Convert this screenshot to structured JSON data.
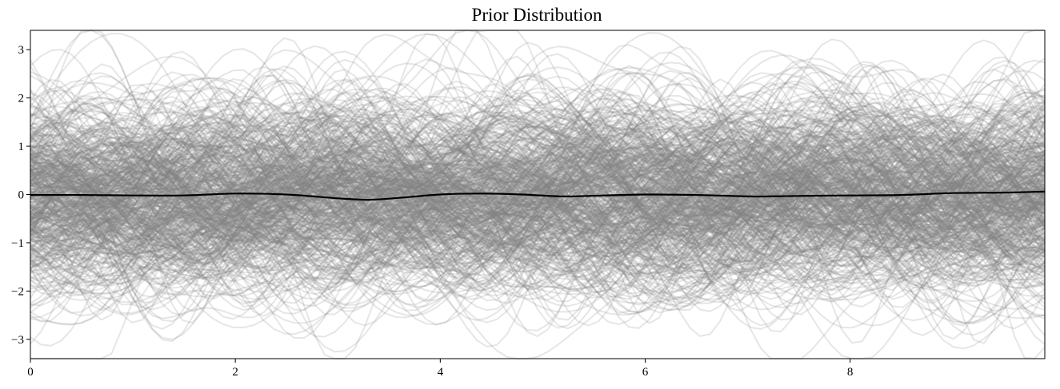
{
  "chart_data": {
    "type": "line",
    "title": "Prior Distribution",
    "xlabel": "",
    "ylabel": "",
    "xlim": [
      0,
      9.9
    ],
    "ylim": [
      -3.4,
      3.4
    ],
    "xticks": [
      0,
      2,
      4,
      6,
      8
    ],
    "xtick_labels": [
      "0",
      "2",
      "4",
      "6",
      "8"
    ],
    "yticks": [
      -3,
      -2,
      -1,
      0,
      1,
      2,
      3
    ],
    "ytick_labels": [
      "−3",
      "−2",
      "−1",
      "0",
      "1",
      "2",
      "3"
    ],
    "grid": false,
    "legend": "none",
    "colors": {
      "samples": "#808080",
      "mean": "#000000"
    },
    "sample_opacity": 0.2,
    "samples": {
      "count": 500,
      "kernel": "RBF",
      "length_scale": 0.5,
      "variance": 1.0
    },
    "series": [
      {
        "role": "mean",
        "x": [
          0,
          0.5,
          1.0,
          1.5,
          2.0,
          2.5,
          3.0,
          3.3,
          3.6,
          4.0,
          4.4,
          4.8,
          5.2,
          5.6,
          6.0,
          6.5,
          7.0,
          7.2,
          7.5,
          8.0,
          8.5,
          9.0,
          9.5,
          9.9
        ],
        "y": [
          -0.01,
          -0.01,
          -0.02,
          -0.02,
          0.02,
          0.0,
          -0.08,
          -0.11,
          -0.07,
          0.0,
          0.02,
          0.0,
          -0.04,
          -0.02,
          0.0,
          -0.01,
          -0.04,
          -0.04,
          -0.03,
          -0.02,
          -0.01,
          0.03,
          0.04,
          0.06
        ]
      }
    ]
  }
}
